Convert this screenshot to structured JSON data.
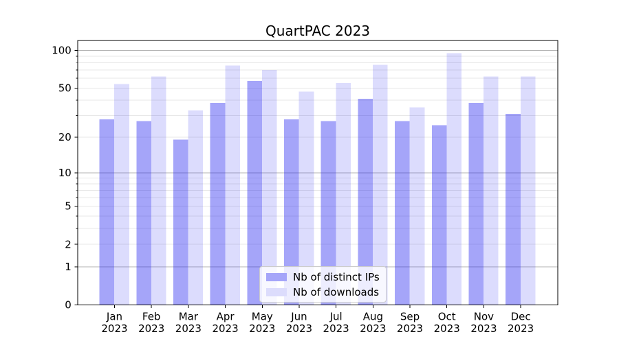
{
  "figure": {
    "title": "QuartPAC 2023",
    "background_color": "#ffffff",
    "text_color": "#000000",
    "spine_color": "#000000",
    "major_grid_color": "#b3b3b3",
    "minor_grid_color": "#e7e7e7"
  },
  "chart_data": {
    "type": "bar",
    "title": "QuartPAC 2023",
    "categories": [
      "Jan",
      "Feb",
      "Mar",
      "Apr",
      "May",
      "Jun",
      "Jul",
      "Aug",
      "Sep",
      "Oct",
      "Nov",
      "Dec"
    ],
    "category_year": "2023",
    "series": [
      {
        "name": "Nb of distinct IPs",
        "fill": "rgba(31,31,240,0.40)",
        "legend_color": "#a5a5f9",
        "values": [
          28,
          27,
          19,
          38,
          57,
          28,
          27,
          41,
          27,
          25,
          38,
          31
        ]
      },
      {
        "name": "Nb of downloads",
        "fill": "rgba(31,31,240,0.155)",
        "legend_color": "#dcdcfc",
        "values": [
          54,
          62,
          33,
          76,
          70,
          47,
          55,
          77,
          35,
          95,
          62,
          62
        ]
      }
    ],
    "xlabel": "",
    "ylabel": "",
    "yscale": "log1p",
    "ylim": [
      0,
      120
    ],
    "yticks": [
      0,
      1,
      2,
      5,
      10,
      20,
      50,
      100
    ],
    "major_grid": [
      1,
      10,
      100
    ],
    "minor_grid": [
      2,
      3,
      4,
      5,
      6,
      7,
      8,
      9,
      20,
      30,
      40,
      50,
      60,
      70,
      80,
      90
    ],
    "grid": true,
    "legend_position": "lower center"
  }
}
